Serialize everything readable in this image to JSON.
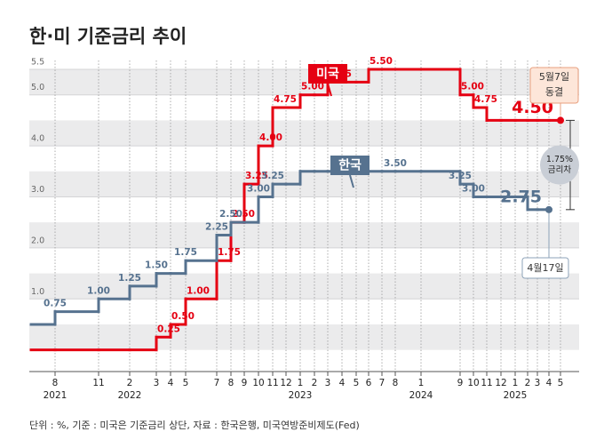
{
  "chart_data": {
    "type": "step",
    "title": "한·미 기준금리 추이",
    "footnote": "단위 : %, 기준 : 미국은 기준금리 상단, 자료 : 한국은행, 미국연방준비제도(Fed)",
    "categories": [
      null,
      "8",
      "11",
      "2",
      "3",
      "4",
      "5",
      "7",
      "8",
      "9",
      "10",
      "11",
      "12",
      "1",
      "2",
      "3",
      "4",
      "5",
      "6",
      "7",
      "8",
      "1",
      "9",
      "10",
      "11",
      "12",
      "1",
      "2",
      "3",
      "4",
      "5"
    ],
    "category_years": [
      null,
      "2021",
      null,
      "2022",
      null,
      null,
      null,
      null,
      null,
      null,
      null,
      null,
      null,
      "2023",
      null,
      null,
      null,
      null,
      null,
      null,
      null,
      "2024",
      null,
      null,
      null,
      null,
      "2025",
      null,
      null,
      null,
      null
    ],
    "series": [
      {
        "name": "미국",
        "color": "#e50012",
        "values": [
          0,
          0,
          0,
          0,
          0.25,
          0.5,
          1.0,
          1.75,
          2.5,
          3.25,
          4.0,
          4.75,
          4.75,
          5.0,
          5.0,
          5.25,
          5.25,
          5.25,
          5.5,
          5.5,
          5.5,
          5.5,
          5.0,
          4.75,
          4.5,
          4.5,
          4.5,
          4.5,
          4.5,
          4.5,
          4.5
        ],
        "value_labels": [
          null,
          null,
          null,
          null,
          "0.25",
          "0.50",
          "1.00",
          "1.75",
          "2.50",
          "3.25",
          "4.00",
          "4.75",
          null,
          "5.00",
          null,
          "5.25",
          null,
          null,
          "5.50",
          null,
          null,
          null,
          "5.00",
          "4.75",
          null,
          null,
          null,
          null,
          null,
          null,
          "4.50"
        ]
      },
      {
        "name": "한국",
        "color": "#56728f",
        "values": [
          0.5,
          0.75,
          1.0,
          1.25,
          1.5,
          1.5,
          1.75,
          2.25,
          2.5,
          2.5,
          3.0,
          3.25,
          3.25,
          3.5,
          3.5,
          3.5,
          3.5,
          3.5,
          3.5,
          3.5,
          3.5,
          3.5,
          3.25,
          3.0,
          3.0,
          3.0,
          3.0,
          2.75,
          2.75,
          2.75,
          null
        ],
        "value_labels": [
          null,
          "0.75",
          "1.00",
          "1.25",
          "1.50",
          null,
          "1.75",
          "2.25",
          "2.50",
          null,
          "3.00",
          "3.25",
          null,
          null,
          null,
          null,
          null,
          null,
          null,
          null,
          "3.50",
          null,
          "3.25",
          "3.00",
          null,
          null,
          null,
          null,
          null,
          "2.75",
          null
        ]
      }
    ],
    "ylim": [
      -0.25,
      5.5
    ],
    "yticks": [
      {
        "value": 1,
        "label": "1.0"
      },
      {
        "value": 2,
        "label": "2.0"
      },
      {
        "value": 3,
        "label": "3.0"
      },
      {
        "value": 4,
        "label": "4.0"
      },
      {
        "value": 5,
        "label": "5.0"
      },
      5.5
    ],
    "annotations": [
      {
        "lines": [
          "5월7일",
          "동결"
        ]
      },
      {
        "lines": [
          "4월17일"
        ]
      },
      {
        "lines": [
          "1.75%",
          "금리차"
        ]
      }
    ]
  }
}
